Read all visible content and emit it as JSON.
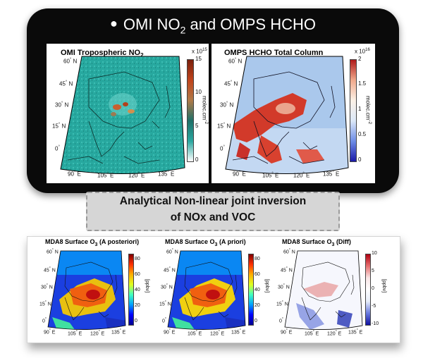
{
  "top": {
    "title": {
      "prefix": "OMI NO",
      "sub": "2",
      "suffix": " and OMPS HCHO"
    },
    "no2_panel": {
      "title": {
        "prefix": "OMI Tropospheric NO",
        "sub": "2"
      },
      "lat_ticks": [
        "60",
        "45",
        "30",
        "15",
        "0"
      ],
      "lon_ticks": [
        "90",
        "105",
        "120",
        "135"
      ],
      "colorbar": {
        "exponent": "x 10",
        "exponent_sup": "15",
        "ticks": [
          "15",
          "10",
          "5",
          "0"
        ],
        "unit": "molec.cm",
        "unit_sup": "-2",
        "colors": [
          "#ffffff",
          "#2aa7a0",
          "#1e7068",
          "#b07a48",
          "#c0441c",
          "#7a1f0c"
        ]
      }
    },
    "hcho_panel": {
      "title": "OMPS HCHO Total Column",
      "lat_ticks": [
        "60",
        "45",
        "30",
        "15",
        "0"
      ],
      "lon_ticks": [
        "90",
        "105",
        "120",
        "135"
      ],
      "colorbar": {
        "exponent": "x 10",
        "exponent_sup": "16",
        "ticks": [
          "2",
          "1.5",
          "1",
          "0.5",
          "0"
        ],
        "unit": "molec.cm",
        "unit_sup": "-2",
        "colors": [
          "#1a1aa8",
          "#6f8ee6",
          "#dce8f8",
          "#fbf1e6",
          "#f0a98c",
          "#b01a1a"
        ]
      }
    }
  },
  "middle": {
    "line1": "Analytical Non-linear joint inversion",
    "line2": "of NOx and VOC"
  },
  "bottom": {
    "panels": [
      {
        "title_prefix": "MDA8 Surface O",
        "title_sub": "3",
        "title_suffix": " (A posteriori)",
        "cbar_ticks": [
          "80",
          "60",
          "40",
          "20",
          "0"
        ],
        "unit": "[ppbv]"
      },
      {
        "title_prefix": "MDA8 Surface O",
        "title_sub": "3",
        "title_suffix": " (A priori)",
        "cbar_ticks": [
          "80",
          "60",
          "40",
          "20",
          "0"
        ],
        "unit": "[ppbv]"
      },
      {
        "title_prefix": "MDA8 Surface O",
        "title_sub": "3",
        "title_suffix": " (Diff)",
        "cbar_ticks": [
          "10",
          "5",
          "0",
          "-5",
          "-10"
        ],
        "unit": "[ppbv]"
      }
    ],
    "lat_ticks": [
      "60",
      "45",
      "30",
      "15",
      "0"
    ],
    "lon_ticks": [
      "90",
      "105",
      "120",
      "135"
    ]
  },
  "suffix": {
    "north": "N",
    "east": "E"
  },
  "colors": {
    "jet": [
      "#00008f",
      "#0000ff",
      "#00a0ff",
      "#40ffc0",
      "#e0ff20",
      "#ffb000",
      "#ff3000",
      "#800000"
    ],
    "diff": [
      "#1010a0",
      "#6a7ce0",
      "#e8eefa",
      "#ffffff",
      "#fae6e6",
      "#e87070",
      "#b00010"
    ],
    "no2_bg": "#24a79e",
    "hcho_bg": "#a9c9ee"
  }
}
